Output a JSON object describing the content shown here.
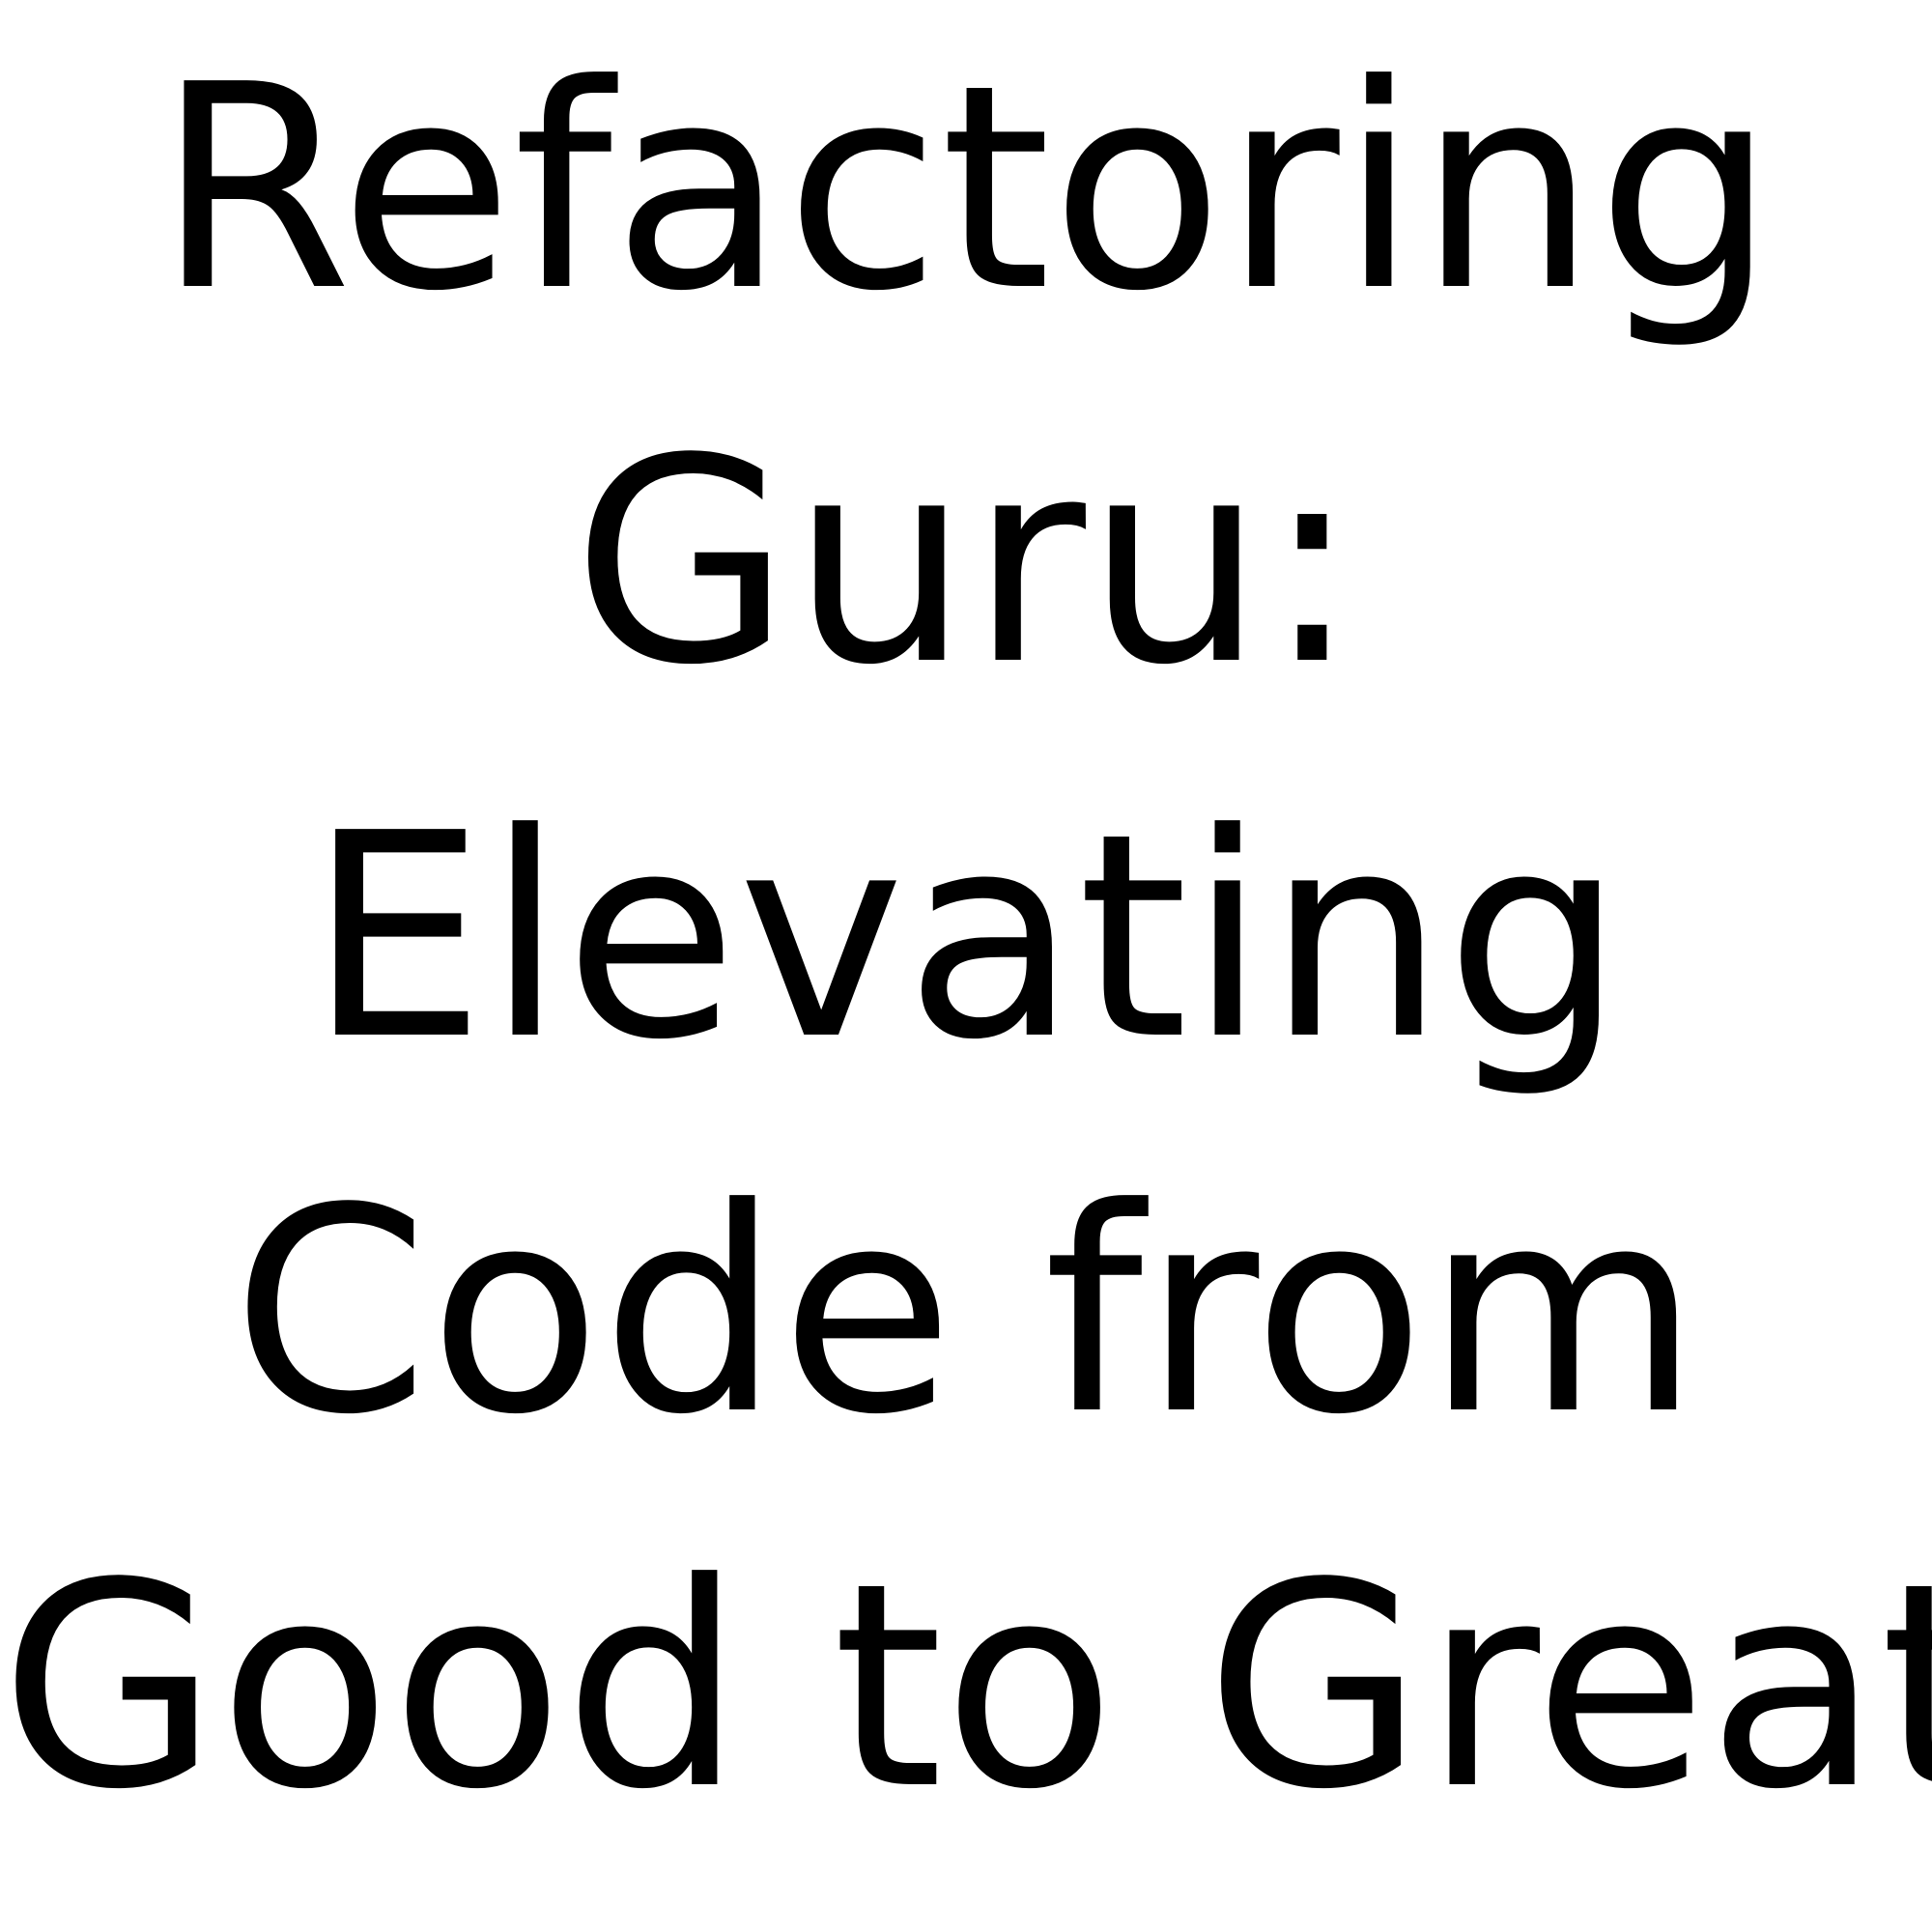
{
  "title": {
    "lines": [
      "Refactoring",
      "Guru:",
      "Elevating",
      "Code from",
      "Good to Great"
    ]
  },
  "colors": {
    "background": "#ffffff",
    "text": "#000000"
  }
}
